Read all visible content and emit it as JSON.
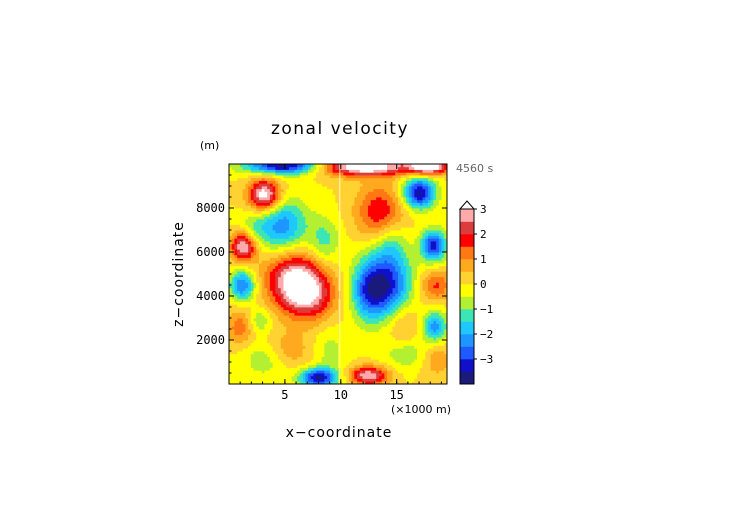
{
  "chart_data": {
    "type": "heatmap",
    "title": "zonal velocity",
    "xlabel": "x−coordinate",
    "ylabel": "z−coordinate",
    "x_unit": "(×1000 m)",
    "y_unit": "(m)",
    "time_label": "4560 s",
    "xlim": [
      0,
      19.5
    ],
    "ylim": [
      0,
      10000
    ],
    "x_ticks": [
      "5",
      "10",
      "15"
    ],
    "y_ticks": [
      "2000",
      "4000",
      "6000",
      "8000"
    ],
    "colorbar": {
      "levels": [
        -3.5,
        -3,
        -2.5,
        -2,
        -1.5,
        -1,
        -0.5,
        0,
        0.5,
        1,
        1.5,
        2,
        2.5,
        3,
        3.5
      ],
      "tick_labels": [
        "3",
        "2",
        "1",
        "0",
        "−1",
        "−2",
        "−3"
      ],
      "extend": "max",
      "colors": [
        "#1a1a7a",
        "#1010c8",
        "#1e5aff",
        "#1e96ff",
        "#1ec8ff",
        "#3ce6b4",
        "#b4f032",
        "#ffff00",
        "#ffd232",
        "#ffaa1e",
        "#ff7814",
        "#ff0000",
        "#dc3c3c",
        "#ffaaaa",
        "#ffffff"
      ]
    },
    "features": [
      {
        "x": 3.2,
        "z": 8600,
        "value": 3.6,
        "sx": 1.0,
        "sz": 500
      },
      {
        "x": 1.3,
        "z": 6300,
        "value": 3.3,
        "sx": 0.8,
        "sz": 500
      },
      {
        "x": 5.8,
        "z": 4800,
        "value": 3.0,
        "sx": 1.8,
        "sz": 900
      },
      {
        "x": 7.2,
        "z": 4000,
        "value": 2.2,
        "sx": 1.6,
        "sz": 800
      },
      {
        "x": 13.5,
        "z": 7800,
        "value": 2.0,
        "sx": 1.5,
        "sz": 900
      },
      {
        "x": 12.0,
        "z": 9900,
        "value": 3.8,
        "sx": 3.0,
        "sz": 300
      },
      {
        "x": 17.8,
        "z": 9900,
        "value": 3.8,
        "sx": 1.2,
        "sz": 250
      },
      {
        "x": 12.5,
        "z": 400,
        "value": 3.0,
        "sx": 1.2,
        "sz": 300
      },
      {
        "x": 1.0,
        "z": 2600,
        "value": 1.3,
        "sx": 0.9,
        "sz": 600
      },
      {
        "x": 5.0,
        "z": 1500,
        "value": 1.2,
        "sx": 1.5,
        "sz": 600
      },
      {
        "x": 15.5,
        "z": 2800,
        "value": 1.0,
        "sx": 1.2,
        "sz": 800
      },
      {
        "x": 18.5,
        "z": 4500,
        "value": 1.6,
        "sx": 1.0,
        "sz": 500
      },
      {
        "x": 18.5,
        "z": 1200,
        "value": 1.0,
        "sx": 1.0,
        "sz": 600
      },
      {
        "x": 5.0,
        "z": 9950,
        "value": -3.8,
        "sx": 2.5,
        "sz": 280
      },
      {
        "x": 4.8,
        "z": 7200,
        "value": -2.3,
        "sx": 1.5,
        "sz": 900
      },
      {
        "x": 2.0,
        "z": 7000,
        "value": -1.0,
        "sx": 1.0,
        "sz": 500
      },
      {
        "x": 8.5,
        "z": 6500,
        "value": -1.2,
        "sx": 1.0,
        "sz": 800
      },
      {
        "x": 1.2,
        "z": 4500,
        "value": -2.6,
        "sx": 0.8,
        "sz": 500
      },
      {
        "x": 8.0,
        "z": 300,
        "value": -3.5,
        "sx": 1.2,
        "sz": 300
      },
      {
        "x": 3.5,
        "z": 1200,
        "value": -1.2,
        "sx": 1.5,
        "sz": 600
      },
      {
        "x": 2.7,
        "z": 2900,
        "value": -1.1,
        "sx": 0.7,
        "sz": 400
      },
      {
        "x": 9.0,
        "z": 1500,
        "value": -0.7,
        "sx": 1.0,
        "sz": 800
      },
      {
        "x": 17.0,
        "z": 8700,
        "value": -3.6,
        "sx": 1.0,
        "sz": 500
      },
      {
        "x": 14.0,
        "z": 4500,
        "value": -3.4,
        "sx": 1.6,
        "sz": 1100
      },
      {
        "x": 12.3,
        "z": 4200,
        "value": -1.5,
        "sx": 1.0,
        "sz": 900
      },
      {
        "x": 18.3,
        "z": 6300,
        "value": -3.2,
        "sx": 0.8,
        "sz": 500
      },
      {
        "x": 18.4,
        "z": 2600,
        "value": -2.3,
        "sx": 0.8,
        "sz": 500
      },
      {
        "x": 16.0,
        "z": 1400,
        "value": -1.0,
        "sx": 1.5,
        "sz": 500
      },
      {
        "x": 14.5,
        "z": 6500,
        "value": -1.0,
        "sx": 1.0,
        "sz": 700
      }
    ]
  }
}
